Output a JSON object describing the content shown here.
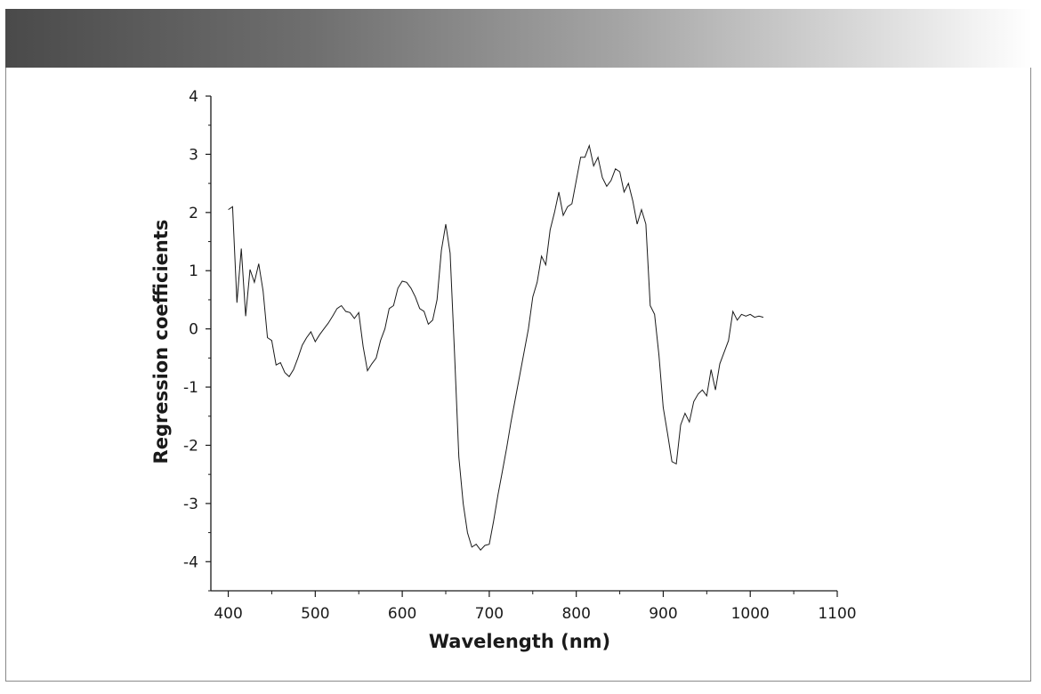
{
  "chart_data": {
    "type": "line",
    "title": "",
    "xlabel": "Wavelength (nm)",
    "ylabel": "Regression coefficients",
    "xlim": [
      380,
      1100
    ],
    "ylim": [
      -4.5,
      4
    ],
    "xticks": [
      400,
      500,
      600,
      700,
      800,
      900,
      1000,
      1100
    ],
    "yticks": [
      -4,
      -3,
      -2,
      -1,
      0,
      1,
      2,
      3,
      4
    ],
    "grid": false,
    "legend": "none",
    "line_color": "#1a1a1a",
    "x": [
      400,
      405,
      410,
      415,
      420,
      425,
      430,
      435,
      440,
      445,
      450,
      455,
      460,
      465,
      470,
      475,
      480,
      485,
      490,
      495,
      500,
      505,
      510,
      515,
      520,
      525,
      530,
      535,
      540,
      545,
      550,
      555,
      560,
      565,
      570,
      575,
      580,
      585,
      590,
      595,
      600,
      605,
      610,
      615,
      620,
      625,
      630,
      635,
      640,
      645,
      650,
      655,
      660,
      665,
      670,
      675,
      680,
      685,
      690,
      695,
      700,
      705,
      710,
      715,
      720,
      725,
      730,
      735,
      740,
      745,
      750,
      755,
      760,
      765,
      770,
      775,
      780,
      785,
      790,
      795,
      800,
      805,
      810,
      815,
      820,
      825,
      830,
      835,
      840,
      845,
      850,
      855,
      860,
      865,
      870,
      875,
      880,
      885,
      890,
      895,
      900,
      905,
      910,
      915,
      920,
      925,
      930,
      935,
      940,
      945,
      950,
      955,
      960,
      965,
      970,
      975,
      980,
      985,
      990,
      995,
      1000,
      1005,
      1010,
      1015
    ],
    "y": [
      2.05,
      2.1,
      0.45,
      1.38,
      0.22,
      1.02,
      0.8,
      1.12,
      0.65,
      -0.15,
      -0.2,
      -0.62,
      -0.58,
      -0.75,
      -0.82,
      -0.7,
      -0.5,
      -0.28,
      -0.15,
      -0.05,
      -0.22,
      -0.1,
      0.0,
      0.1,
      0.22,
      0.35,
      0.4,
      0.3,
      0.28,
      0.18,
      0.28,
      -0.3,
      -0.72,
      -0.6,
      -0.5,
      -0.2,
      0.0,
      0.35,
      0.4,
      0.7,
      0.82,
      0.8,
      0.7,
      0.55,
      0.35,
      0.3,
      0.08,
      0.15,
      0.5,
      1.35,
      1.8,
      1.3,
      -0.4,
      -2.2,
      -3.0,
      -3.5,
      -3.75,
      -3.7,
      -3.8,
      -3.72,
      -3.7,
      -3.3,
      -2.85,
      -2.45,
      -2.05,
      -1.6,
      -1.2,
      -0.8,
      -0.4,
      0.0,
      0.55,
      0.8,
      1.25,
      1.1,
      1.7,
      2.0,
      2.35,
      1.95,
      2.1,
      2.15,
      2.55,
      2.95,
      2.95,
      3.15,
      2.8,
      2.95,
      2.6,
      2.45,
      2.55,
      2.75,
      2.7,
      2.35,
      2.5,
      2.2,
      1.8,
      2.05,
      1.8,
      0.4,
      0.25,
      -0.45,
      -1.35,
      -1.8,
      -2.28,
      -2.32,
      -1.65,
      -1.45,
      -1.6,
      -1.25,
      -1.12,
      -1.05,
      -1.15,
      -0.7,
      -1.05,
      -0.6,
      -0.4,
      -0.2,
      0.3,
      0.15,
      0.25,
      0.22,
      0.25,
      0.2,
      0.22,
      0.2
    ]
  }
}
